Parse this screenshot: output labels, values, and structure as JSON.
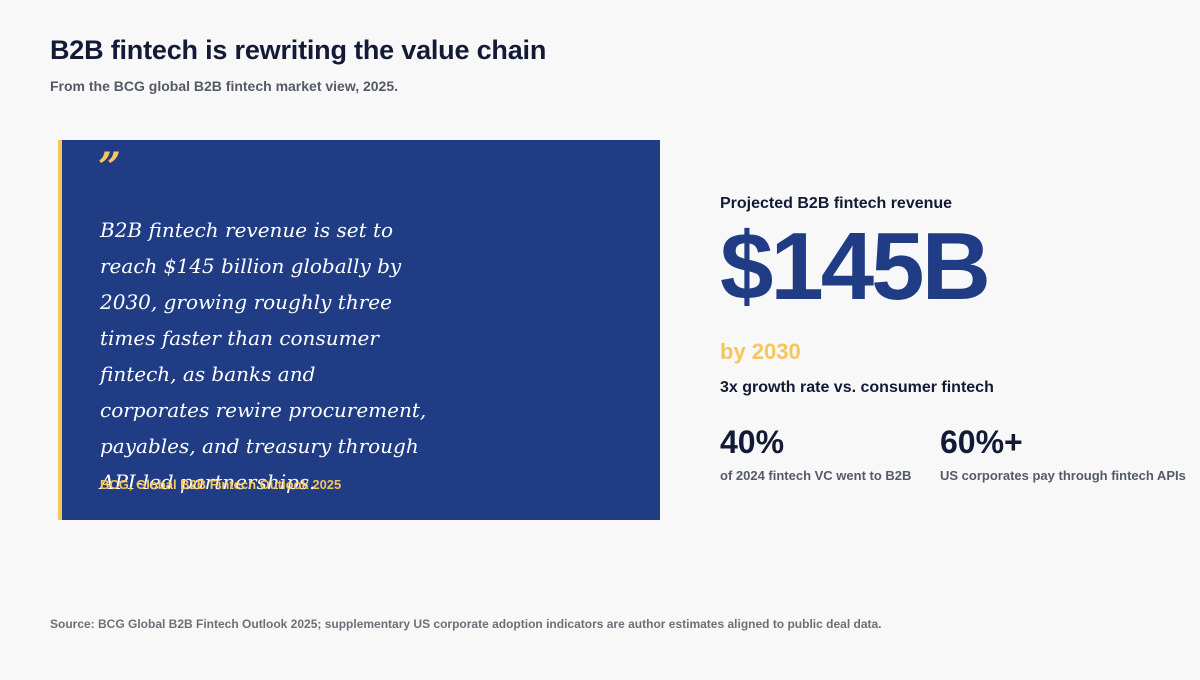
{
  "header": {
    "title": "B2B fintech is rewriting the value chain",
    "subtitle": "From the BCG global B2B fintech market view, 2025."
  },
  "quote": {
    "mark": "”",
    "text": "B2B fintech revenue is set to reach $145 billion globally by 2030, growing roughly three times faster than consumer fintech, as banks and corporates rewire procurement, payables, and treasury through API-led partnerships.",
    "attribution": "BCG, Global B2B Fintech Outlook 2025"
  },
  "stats": {
    "label": "Projected B2B fintech revenue",
    "value": "$145B",
    "year": "by 2030",
    "growth": "3x growth rate vs. consumer fintech",
    "mini": [
      {
        "value": "40%",
        "caption": "of 2024 fintech VC went to B2B"
      },
      {
        "value": "60%+",
        "caption": "US corporates pay through fintech APIs"
      }
    ]
  },
  "footer": {
    "source": "Source: BCG Global B2B Fintech Outlook 2025; supplementary US corporate adoption indicators are author estimates aligned to public deal data."
  },
  "colors": {
    "accent": "#1f3c85",
    "highlight": "#f5c659",
    "background": "#f8f8f8"
  }
}
